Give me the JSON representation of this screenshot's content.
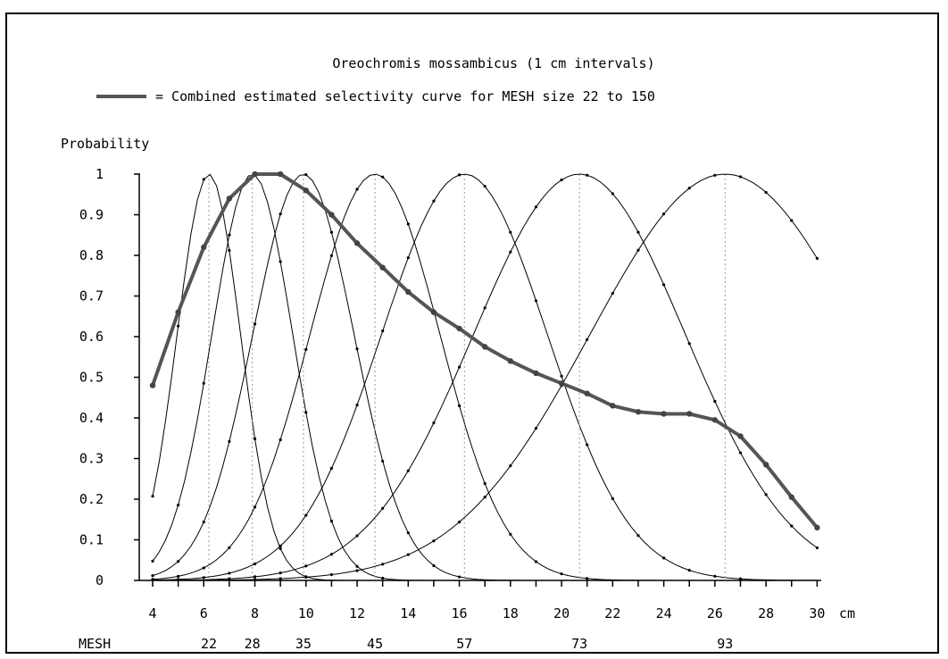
{
  "chart_data": {
    "type": "line",
    "title": "Oreochromis mossambicus (1 cm intervals)",
    "legend_text": "= Combined estimated selectivity curve for MESH size  22 to 150",
    "legend_placement": "top",
    "ylabel": "Probability",
    "x_unit_label": "cm",
    "mesh_row_label": "MESH",
    "xlim": [
      4,
      30
    ],
    "ylim": [
      0,
      1
    ],
    "x_tick_labels": [
      "4",
      "6",
      "8",
      "10",
      "12",
      "14",
      "16",
      "18",
      "20",
      "22",
      "24",
      "26",
      "28",
      "30"
    ],
    "y_tick_labels": [
      "0",
      "0.1",
      "0.2",
      "0.3",
      "0.4",
      "0.5",
      "0.6",
      "0.7",
      "0.8",
      "0.9",
      "1"
    ],
    "mesh_sizes": [
      {
        "label": "22",
        "length_cm": 6.2
      },
      {
        "label": "28",
        "length_cm": 7.9
      },
      {
        "label": "35",
        "length_cm": 9.9
      },
      {
        "label": "45",
        "length_cm": 12.7
      },
      {
        "label": "57",
        "length_cm": 16.2
      },
      {
        "label": "73",
        "length_cm": 20.7
      },
      {
        "label": "93",
        "length_cm": 26.4
      }
    ],
    "component_spread_factor": 0.2,
    "combined_series": {
      "x": [
        4,
        5,
        6,
        7,
        8,
        9,
        10,
        11,
        12,
        13,
        14,
        15,
        16,
        17,
        18,
        19,
        20,
        21,
        22,
        23,
        24,
        25,
        26,
        27,
        28,
        29,
        30
      ],
      "values": [
        0.48,
        0.66,
        0.82,
        0.94,
        1.0,
        1.0,
        0.96,
        0.9,
        0.83,
        0.77,
        0.71,
        0.66,
        0.62,
        0.575,
        0.54,
        0.51,
        0.485,
        0.46,
        0.43,
        0.415,
        0.41,
        0.41,
        0.395,
        0.355,
        0.285,
        0.205,
        0.13
      ]
    },
    "grid": false
  }
}
